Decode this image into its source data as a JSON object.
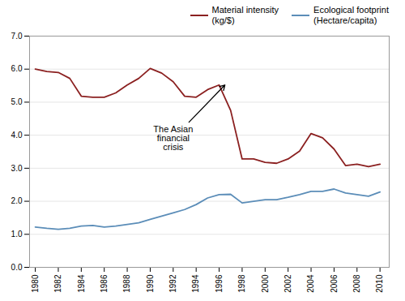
{
  "chart_data": {
    "type": "line",
    "x": [
      1980,
      1981,
      1982,
      1983,
      1984,
      1985,
      1986,
      1987,
      1988,
      1989,
      1990,
      1991,
      1992,
      1993,
      1994,
      1995,
      1996,
      1997,
      1998,
      1999,
      2000,
      2001,
      2002,
      2003,
      2004,
      2005,
      2006,
      2007,
      2008,
      2009,
      2010
    ],
    "series": [
      {
        "name": "Material intensity\n(kg/$)",
        "color": "#8B2020",
        "values": [
          6.0,
          5.93,
          5.9,
          5.72,
          5.18,
          5.15,
          5.15,
          5.28,
          5.52,
          5.72,
          6.02,
          5.88,
          5.62,
          5.18,
          5.15,
          5.38,
          5.52,
          4.75,
          3.28,
          3.28,
          3.18,
          3.15,
          3.28,
          3.52,
          4.05,
          3.92,
          3.58,
          3.08,
          3.12,
          3.05,
          3.12
        ]
      },
      {
        "name": "Ecological footprint\n(Hectare/capita)",
        "color": "#5B8DB8",
        "values": [
          1.22,
          1.18,
          1.15,
          1.18,
          1.25,
          1.27,
          1.22,
          1.25,
          1.3,
          1.35,
          1.45,
          1.55,
          1.65,
          1.75,
          1.9,
          2.1,
          2.2,
          2.21,
          1.95,
          2.0,
          2.05,
          2.05,
          2.12,
          2.2,
          2.3,
          2.3,
          2.37,
          2.25,
          2.2,
          2.15,
          2.28
        ]
      }
    ],
    "xlim": [
      1979.5,
      2010.8
    ],
    "xticks": [
      1980,
      1982,
      1984,
      1986,
      1988,
      1990,
      1992,
      1994,
      1996,
      1998,
      2000,
      2002,
      2004,
      2006,
      2008,
      2010
    ],
    "ylim": [
      0.0,
      7.0
    ],
    "yticks": [
      {
        "value": 0,
        "label": "0.0"
      },
      {
        "value": 1,
        "label": "1.0"
      },
      {
        "value": 2,
        "label": "2.0"
      },
      {
        "value": 3,
        "label": "3.0"
      },
      {
        "value": 4,
        "label": "4.0"
      },
      {
        "value": 5,
        "label": "5.0"
      },
      {
        "value": 6,
        "label": "6.0"
      },
      {
        "value": 7,
        "label": "7.0"
      }
    ],
    "grid": "y",
    "legend": "upper right",
    "annotations": [
      {
        "text": "The Asian\nfinancial\ncrisis",
        "x": 1996.5,
        "y": 5.52,
        "text_x": 1992.0,
        "text_y": 3.9
      }
    ]
  }
}
